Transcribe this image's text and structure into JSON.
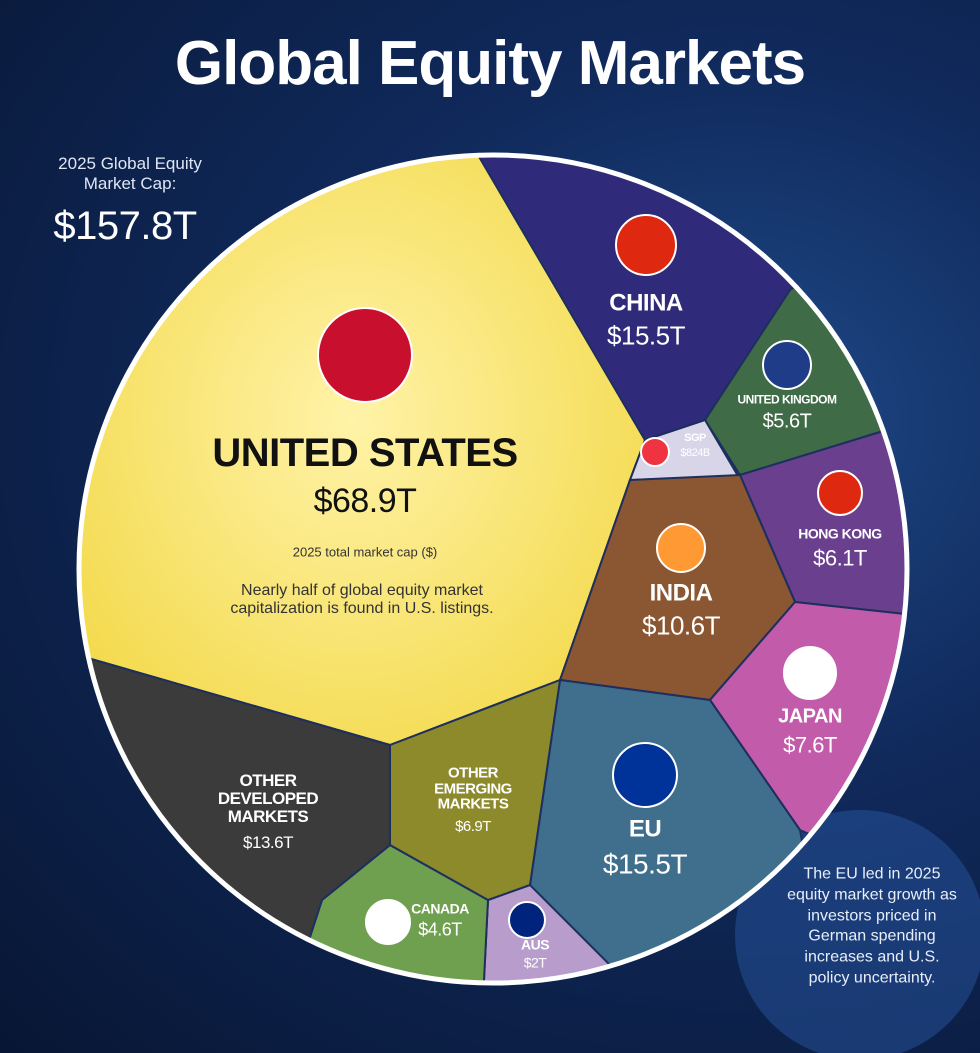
{
  "chart_data": {
    "type": "voronoi-treemap",
    "title": "Global Equity Markets",
    "total_caption": "2025 Global Equity Market Cap:",
    "total": {
      "value": 157.8,
      "label": "$157.8T"
    },
    "categories": [
      "UNITED STATES",
      "CHINA",
      "UNITED KINGDOM",
      "SGP",
      "HONG KONG",
      "INDIA",
      "JAPAN",
      "EU",
      "AUS",
      "CANADA",
      "OTHER EMERGING MARKETS",
      "OTHER DEVELOPED MARKETS"
    ],
    "values": [
      68.9,
      15.5,
      5.6,
      0.824,
      6.1,
      10.6,
      7.6,
      15.5,
      2,
      4.6,
      6.9,
      13.6
    ],
    "value_labels": [
      "$68.9T",
      "$15.5T",
      "$5.6T",
      "$824B",
      "$6.1T",
      "$10.6T",
      "$7.6T",
      "$15.5T",
      "$2T",
      "$4.6T",
      "$6.9T",
      "$13.6T"
    ],
    "colors": [
      "#f4dc55",
      "#2f2b7a",
      "#3f6b47",
      "#d9d5e8",
      "#6a3f8e",
      "#8b5632",
      "#c25ba9",
      "#3f6f8c",
      "#b89ccb",
      "#6fa04f",
      "#8d8a2c",
      "#3b3b3b"
    ],
    "annotations": [
      "2025 total market cap ($)",
      "Nearly half of global equity market capitalization is found in U.S. listings.",
      "The EU led in 2025 equity market growth as investors priced in German spending increases and U.S. policy uncertainty."
    ]
  }
}
